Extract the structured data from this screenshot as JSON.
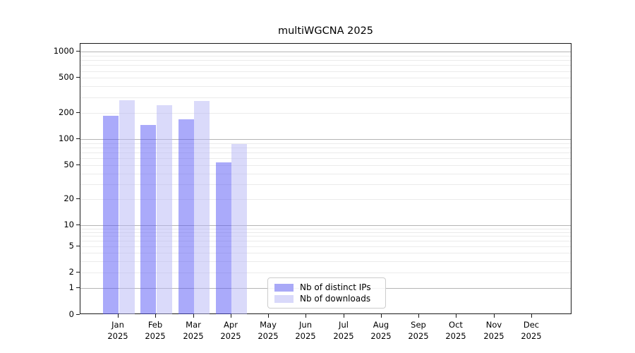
{
  "title": "multiWGCNA 2025",
  "legend": {
    "items": [
      {
        "label": "Nb of distinct IPs",
        "swatch_color": "#a9a9f7",
        "fill": "rgba(85,85,245,0.5)"
      },
      {
        "label": "Nb of downloads",
        "swatch_color": "#d9d9fa",
        "fill": "rgba(181,181,245,0.5)"
      }
    ],
    "position": "inside bottom-center"
  },
  "chart_data": {
    "type": "bar",
    "title": "multiWGCNA 2025",
    "categories": [
      "Jan 2025",
      "Feb 2025",
      "Mar 2025",
      "Apr 2025",
      "May 2025",
      "Jun 2025",
      "Jul 2025",
      "Aug 2025",
      "Sep 2025",
      "Oct 2025",
      "Nov 2025",
      "Dec 2025"
    ],
    "series": [
      {
        "name": "Nb of distinct IPs",
        "color": "#a9a9f7",
        "values": [
          185,
          146,
          168,
          54,
          0,
          0,
          0,
          0,
          0,
          0,
          0,
          0
        ]
      },
      {
        "name": "Nb of downloads",
        "color": "#d9d9fa",
        "values": [
          280,
          245,
          272,
          88,
          0,
          0,
          0,
          0,
          0,
          0,
          0,
          0
        ]
      }
    ],
    "xlabel": "",
    "ylabel": "",
    "yscale": "log-like (linear segment from 0 to 1, logarithmic above)",
    "y_ticks": [
      0,
      1,
      2,
      5,
      10,
      20,
      50,
      100,
      200,
      500,
      1000
    ],
    "ylim": [
      0,
      1200
    ],
    "grid": "horizontal only: major gray lines at 1, 10, 100, 1000; light minor lines at 2-9 multiples",
    "legend_position": "inside bottom-center",
    "bar_grouping": "two bars per month, distinct-IPs left, downloads right"
  },
  "colors": {
    "background": "#ffffff",
    "axis_spine": "#1a1a1a",
    "major_grid": "#b5b5b5",
    "minor_grid": "#ebebeb",
    "tick_text": "#000000"
  }
}
